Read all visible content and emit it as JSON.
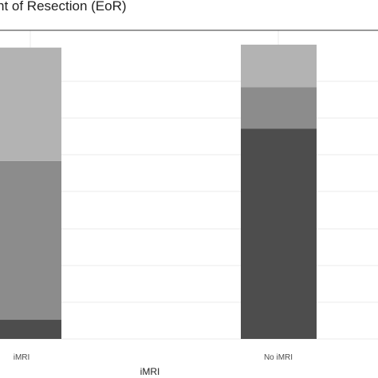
{
  "chart_data": {
    "type": "bar",
    "stacked": true,
    "title": "nt of Resection (EoR)",
    "xlabel": "iMRI",
    "ylabel": "",
    "categories": [
      "iMRI",
      "No iMRI"
    ],
    "ylim": [
      0,
      100
    ],
    "grid": true,
    "series": [
      {
        "values": [
          6.5,
          71.5
        ],
        "color": "#4d4d4d"
      },
      {
        "values": [
          54,
          14
        ],
        "color": "#8c8c8c"
      },
      {
        "values": [
          38.5,
          14.5
        ],
        "color": "#b3b3b3"
      }
    ]
  }
}
